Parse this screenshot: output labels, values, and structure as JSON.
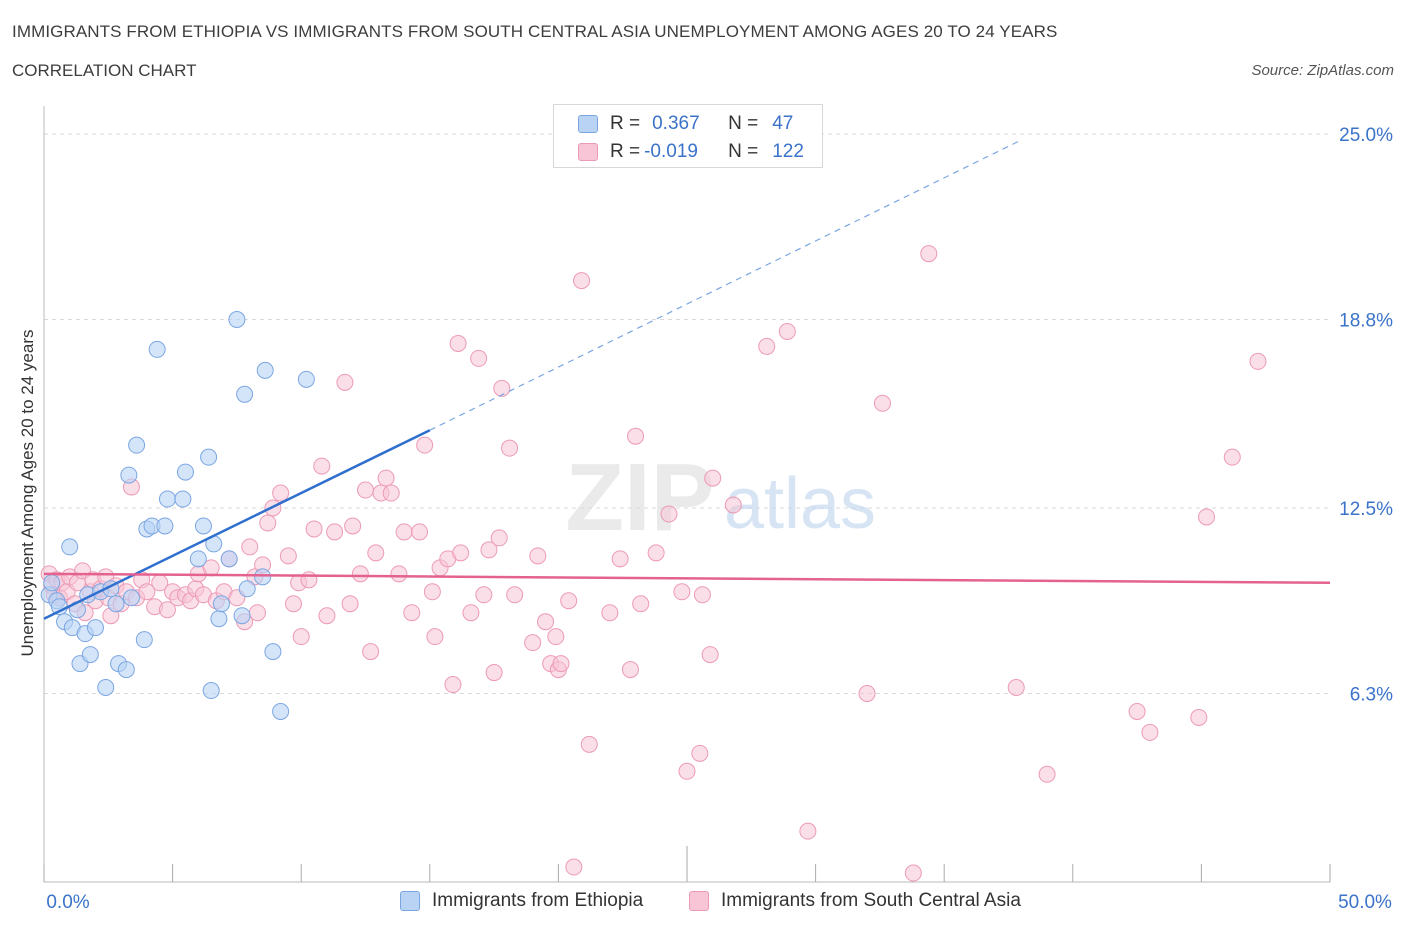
{
  "header": {
    "title": "IMMIGRANTS FROM ETHIOPIA VS IMMIGRANTS FROM SOUTH CENTRAL ASIA UNEMPLOYMENT AMONG AGES 20 TO 24 YEARS",
    "subtitle": "CORRELATION CHART",
    "source": "Source: ZipAtlas.com"
  },
  "watermark": {
    "zip": "ZIP",
    "atlas": "atlas"
  },
  "legend": {
    "r_label": "R =",
    "n_label": "N =",
    "series1": {
      "r": "0.367",
      "n": "47"
    },
    "series2": {
      "r": "-0.019",
      "n": "122"
    }
  },
  "colors": {
    "blue_fill": "#b9d3f5",
    "blue_stroke": "#7aa6e2",
    "blue_line": "#2f6fce",
    "pink_fill": "#f7c5d5",
    "pink_stroke": "#ec9ab5",
    "pink_line": "#e4628f",
    "tick_label": "#3a73c9",
    "grid": "#d9d9d9"
  },
  "chart_data": {
    "type": "scatter",
    "xlabel": "",
    "ylabel": "Unemployment Among Ages 20 to 24 years",
    "xlim": [
      0,
      50
    ],
    "ylim": [
      0,
      25
    ],
    "x_tick_labels": {
      "min": "0.0%",
      "max": "50.0%"
    },
    "y_ticks": [
      {
        "value": 6.3,
        "label": "6.3%"
      },
      {
        "value": 12.5,
        "label": "12.5%"
      },
      {
        "value": 18.8,
        "label": "18.8%"
      },
      {
        "value": 25.0,
        "label": "25.0%"
      }
    ],
    "grid": true,
    "series": [
      {
        "name": "Immigrants from Ethiopia",
        "r": 0.367,
        "n": 47,
        "trend": {
          "x0": 0,
          "y0": 8.8,
          "x1": 15,
          "y1": 15.1,
          "dashed_to_x": 38,
          "dashed_to_y": 24.8
        },
        "points": [
          [
            0.2,
            9.6
          ],
          [
            0.3,
            10.0
          ],
          [
            0.5,
            9.4
          ],
          [
            0.6,
            9.2
          ],
          [
            0.8,
            8.7
          ],
          [
            1.0,
            11.2
          ],
          [
            1.1,
            8.5
          ],
          [
            1.3,
            9.1
          ],
          [
            1.4,
            7.3
          ],
          [
            1.6,
            8.3
          ],
          [
            1.7,
            9.6
          ],
          [
            1.8,
            7.6
          ],
          [
            2.0,
            8.5
          ],
          [
            2.2,
            9.7
          ],
          [
            2.4,
            6.5
          ],
          [
            2.6,
            9.8
          ],
          [
            2.8,
            9.3
          ],
          [
            2.9,
            7.3
          ],
          [
            3.2,
            7.1
          ],
          [
            3.3,
            13.6
          ],
          [
            3.4,
            9.5
          ],
          [
            3.6,
            14.6
          ],
          [
            3.9,
            8.1
          ],
          [
            4.0,
            11.8
          ],
          [
            4.2,
            11.9
          ],
          [
            4.4,
            17.8
          ],
          [
            4.7,
            11.9
          ],
          [
            4.8,
            12.8
          ],
          [
            5.4,
            12.8
          ],
          [
            5.5,
            13.7
          ],
          [
            6.0,
            10.8
          ],
          [
            6.2,
            11.9
          ],
          [
            6.4,
            14.2
          ],
          [
            6.6,
            11.3
          ],
          [
            6.5,
            6.4
          ],
          [
            6.8,
            8.8
          ],
          [
            6.9,
            9.3
          ],
          [
            7.2,
            10.8
          ],
          [
            7.5,
            18.8
          ],
          [
            7.7,
            8.9
          ],
          [
            7.8,
            16.3
          ],
          [
            7.9,
            9.8
          ],
          [
            8.5,
            10.2
          ],
          [
            8.6,
            17.1
          ],
          [
            8.9,
            7.7
          ],
          [
            9.2,
            5.7
          ],
          [
            10.2,
            16.8
          ]
        ]
      },
      {
        "name": "Immigrants from South Central Asia",
        "r": -0.019,
        "n": 122,
        "trend": {
          "x0": 0,
          "y0": 10.3,
          "x1": 50,
          "y1": 10.0
        },
        "points": [
          [
            0.2,
            10.3
          ],
          [
            0.3,
            9.9
          ],
          [
            0.4,
            9.6
          ],
          [
            0.5,
            10.1
          ],
          [
            0.6,
            9.5
          ],
          [
            0.7,
            10.0
          ],
          [
            0.9,
            9.7
          ],
          [
            1.0,
            10.2
          ],
          [
            1.2,
            9.3
          ],
          [
            1.3,
            10.0
          ],
          [
            1.5,
            10.4
          ],
          [
            1.6,
            9.0
          ],
          [
            1.8,
            9.7
          ],
          [
            1.9,
            10.1
          ],
          [
            2.0,
            9.4
          ],
          [
            2.2,
            9.8
          ],
          [
            2.4,
            10.2
          ],
          [
            2.5,
            9.5
          ],
          [
            2.6,
            8.9
          ],
          [
            2.8,
            9.9
          ],
          [
            3.0,
            9.3
          ],
          [
            3.2,
            9.7
          ],
          [
            3.4,
            13.2
          ],
          [
            3.6,
            9.5
          ],
          [
            3.8,
            10.1
          ],
          [
            4.0,
            9.7
          ],
          [
            4.3,
            9.2
          ],
          [
            4.5,
            10.0
          ],
          [
            4.8,
            9.1
          ],
          [
            5.0,
            9.7
          ],
          [
            5.2,
            9.5
          ],
          [
            5.5,
            9.6
          ],
          [
            5.7,
            9.4
          ],
          [
            5.9,
            9.8
          ],
          [
            6.0,
            10.3
          ],
          [
            6.2,
            9.6
          ],
          [
            6.5,
            10.5
          ],
          [
            6.7,
            9.4
          ],
          [
            7.0,
            9.7
          ],
          [
            7.2,
            10.8
          ],
          [
            7.5,
            9.5
          ],
          [
            7.8,
            8.7
          ],
          [
            8.0,
            11.2
          ],
          [
            8.2,
            10.2
          ],
          [
            8.3,
            9.0
          ],
          [
            8.5,
            10.6
          ],
          [
            8.7,
            12.0
          ],
          [
            8.9,
            12.5
          ],
          [
            9.2,
            13.0
          ],
          [
            9.5,
            10.9
          ],
          [
            9.7,
            9.3
          ],
          [
            9.9,
            10.0
          ],
          [
            10.0,
            8.2
          ],
          [
            10.3,
            10.1
          ],
          [
            10.5,
            11.8
          ],
          [
            10.8,
            13.9
          ],
          [
            11.0,
            8.9
          ],
          [
            11.3,
            11.7
          ],
          [
            11.7,
            16.7
          ],
          [
            11.9,
            9.3
          ],
          [
            12.0,
            11.9
          ],
          [
            12.3,
            10.3
          ],
          [
            12.5,
            13.1
          ],
          [
            12.7,
            7.7
          ],
          [
            12.9,
            11.0
          ],
          [
            13.1,
            13.0
          ],
          [
            13.3,
            13.5
          ],
          [
            13.5,
            13.0
          ],
          [
            13.8,
            10.3
          ],
          [
            14.0,
            11.7
          ],
          [
            14.3,
            9.0
          ],
          [
            14.6,
            11.7
          ],
          [
            14.8,
            14.6
          ],
          [
            15.1,
            9.7
          ],
          [
            15.2,
            8.2
          ],
          [
            15.4,
            10.5
          ],
          [
            15.7,
            10.8
          ],
          [
            15.9,
            6.6
          ],
          [
            16.1,
            18.0
          ],
          [
            16.2,
            11.0
          ],
          [
            16.6,
            9.0
          ],
          [
            16.9,
            17.5
          ],
          [
            17.1,
            9.6
          ],
          [
            17.3,
            11.1
          ],
          [
            17.5,
            7.0
          ],
          [
            17.7,
            11.5
          ],
          [
            17.8,
            16.5
          ],
          [
            18.1,
            14.5
          ],
          [
            18.3,
            9.6
          ],
          [
            19.0,
            8.0
          ],
          [
            19.2,
            10.9
          ],
          [
            19.5,
            8.7
          ],
          [
            19.7,
            7.3
          ],
          [
            19.9,
            8.2
          ],
          [
            20.0,
            7.1
          ],
          [
            20.1,
            7.3
          ],
          [
            20.4,
            9.4
          ],
          [
            20.6,
            0.5
          ],
          [
            20.9,
            20.1
          ],
          [
            21.2,
            4.6
          ],
          [
            22.0,
            9.0
          ],
          [
            22.4,
            10.8
          ],
          [
            22.8,
            7.1
          ],
          [
            23.0,
            14.9
          ],
          [
            23.2,
            9.3
          ],
          [
            23.8,
            11.0
          ],
          [
            24.3,
            12.3
          ],
          [
            24.8,
            9.7
          ],
          [
            25.0,
            3.7
          ],
          [
            25.5,
            4.3
          ],
          [
            25.6,
            9.6
          ],
          [
            25.9,
            7.6
          ],
          [
            26.0,
            13.5
          ],
          [
            26.8,
            12.6
          ],
          [
            28.1,
            17.9
          ],
          [
            28.9,
            18.4
          ],
          [
            29.7,
            1.7
          ],
          [
            32.0,
            6.3
          ],
          [
            32.6,
            16.0
          ],
          [
            33.8,
            0.3
          ],
          [
            34.4,
            21.0
          ],
          [
            37.8,
            6.5
          ],
          [
            39.0,
            3.6
          ],
          [
            42.5,
            5.7
          ],
          [
            43.0,
            5.0
          ],
          [
            44.9,
            5.5
          ],
          [
            45.2,
            12.2
          ],
          [
            46.2,
            14.2
          ],
          [
            47.2,
            17.4
          ]
        ]
      }
    ]
  },
  "bottom_legend": {
    "series1": "Immigrants from Ethiopia",
    "series2": "Immigrants from South Central Asia"
  }
}
